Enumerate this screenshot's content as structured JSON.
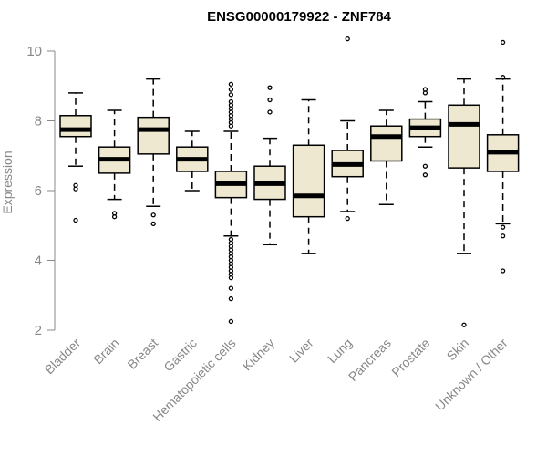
{
  "chart_data": {
    "type": "boxplot",
    "title": "ENSG00000179922 - ZNF784",
    "xlabel": "",
    "ylabel": "Expression",
    "ylim": [
      2,
      10
    ],
    "yticks": [
      "2",
      "4",
      "6",
      "8",
      "10"
    ],
    "box_fill": "#efe8d0",
    "box_stroke": "#000000",
    "median_color": "#000000",
    "categories": [
      "Bladder",
      "Brain",
      "Breast",
      "Gastric",
      "Hematopoietic cells",
      "Kidney",
      "Liver",
      "Lung",
      "Pancreas",
      "Prostate",
      "Skin",
      "Unknown / Other"
    ],
    "boxes": [
      {
        "q1": 7.55,
        "median": 7.75,
        "q3": 8.15,
        "whisker_low": 6.7,
        "whisker_high": 8.8,
        "outliers": [
          6.15,
          6.05,
          5.15
        ]
      },
      {
        "q1": 6.5,
        "median": 6.9,
        "q3": 7.25,
        "whisker_low": 5.75,
        "whisker_high": 8.3,
        "outliers": [
          5.35,
          5.25
        ]
      },
      {
        "q1": 7.05,
        "median": 7.75,
        "q3": 8.1,
        "whisker_low": 5.55,
        "whisker_high": 9.2,
        "outliers": [
          5.3,
          5.05
        ]
      },
      {
        "q1": 6.55,
        "median": 6.9,
        "q3": 7.25,
        "whisker_low": 6.0,
        "whisker_high": 7.7,
        "outliers": []
      },
      {
        "q1": 5.8,
        "median": 6.2,
        "q3": 6.55,
        "whisker_low": 4.7,
        "whisker_high": 7.7,
        "outliers": [
          9.05,
          8.9,
          8.75,
          8.55,
          8.45,
          8.35,
          8.25,
          8.15,
          8.05,
          7.95,
          7.85,
          4.6,
          4.5,
          4.4,
          4.3,
          4.2,
          4.1,
          4.0,
          3.9,
          3.8,
          3.7,
          3.6,
          3.5,
          3.2,
          2.9,
          2.25
        ]
      },
      {
        "q1": 5.75,
        "median": 6.2,
        "q3": 6.7,
        "whisker_low": 4.45,
        "whisker_high": 7.5,
        "outliers": [
          8.95,
          8.6,
          8.25
        ]
      },
      {
        "q1": 5.25,
        "median": 5.85,
        "q3": 7.3,
        "whisker_low": 4.2,
        "whisker_high": 8.6,
        "outliers": []
      },
      {
        "q1": 6.4,
        "median": 6.75,
        "q3": 7.15,
        "whisker_low": 5.4,
        "whisker_high": 8.0,
        "outliers": [
          10.35,
          5.2
        ]
      },
      {
        "q1": 6.85,
        "median": 7.55,
        "q3": 7.85,
        "whisker_low": 5.6,
        "whisker_high": 8.3,
        "outliers": []
      },
      {
        "q1": 7.55,
        "median": 7.8,
        "q3": 8.05,
        "whisker_low": 7.25,
        "whisker_high": 8.55,
        "outliers": [
          8.9,
          8.8,
          6.7,
          6.45
        ]
      },
      {
        "q1": 6.65,
        "median": 7.9,
        "q3": 8.45,
        "whisker_low": 4.2,
        "whisker_high": 9.2,
        "outliers": [
          2.15
        ]
      },
      {
        "q1": 6.55,
        "median": 7.1,
        "q3": 7.6,
        "whisker_low": 5.05,
        "whisker_high": 9.2,
        "outliers": [
          10.25,
          9.25,
          4.95,
          4.7,
          3.7
        ]
      }
    ]
  }
}
